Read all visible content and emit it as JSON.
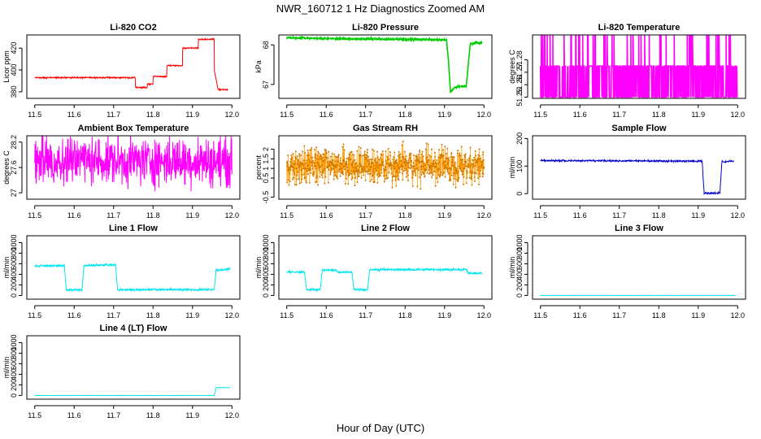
{
  "figure": {
    "title": "NWR_160712  1 Hz Diagnostics Zoomed AM",
    "xlabel": "Hour of Day (UTC)"
  },
  "chart_data": [
    {
      "type": "line",
      "title": "Li-820 CO2",
      "ylabel": "Licor ppm",
      "xlim": [
        11.48,
        12.02
      ],
      "ylim": [
        374,
        432
      ],
      "xticks": [
        11.5,
        11.6,
        11.7,
        11.8,
        11.9,
        12.0
      ],
      "yticks": [
        380,
        400,
        420
      ],
      "color": "#ff0000",
      "noise": 0.3,
      "series": [
        {
          "x": [
            11.5,
            11.755,
            11.755,
            11.785,
            11.785,
            11.8,
            11.8,
            11.835,
            11.835,
            11.875,
            11.875,
            11.915,
            11.915,
            11.955,
            11.955,
            11.965,
            11.965,
            11.99
          ],
          "y": [
            393,
            393,
            384,
            384,
            387,
            387,
            394,
            394,
            404,
            404,
            420,
            420,
            428,
            428,
            400,
            382,
            382,
            382
          ]
        }
      ]
    },
    {
      "type": "line",
      "title": "Li-820 Pressure",
      "ylabel": "kPa",
      "xlim": [
        11.48,
        12.02
      ],
      "ylim": [
        66.65,
        68.25
      ],
      "xticks": [
        11.5,
        11.6,
        11.7,
        11.8,
        11.9,
        12.0
      ],
      "yticks": [
        67.0,
        68.0
      ],
      "color": "#00cc00",
      "noise": 0.01,
      "series": [
        {
          "x": [
            11.5,
            11.6,
            11.7,
            11.8,
            11.905,
            11.91,
            11.915,
            11.925,
            11.935,
            11.955,
            11.965,
            11.98,
            11.995
          ],
          "y": [
            68.18,
            68.16,
            68.15,
            68.14,
            68.13,
            67.6,
            66.8,
            66.92,
            66.95,
            66.95,
            68.02,
            68.05,
            68.05
          ]
        }
      ]
    },
    {
      "type": "line",
      "title": "Li-820 Temperature",
      "ylabel": "degrees C",
      "xlim": [
        11.48,
        12.02
      ],
      "ylim": [
        51.249,
        51.3
      ],
      "xticks": [
        11.5,
        11.6,
        11.7,
        11.8,
        11.9,
        12.0
      ],
      "yticks": [
        51.25,
        51.26,
        51.27,
        51.28
      ],
      "color": "#ff00ff",
      "levels": [
        51.25,
        51.275
      ],
      "rare_level": 51.3,
      "series": [
        {
          "x": [
            11.5,
            12.0
          ],
          "y": [
            51.25,
            51.275
          ]
        }
      ]
    },
    {
      "type": "line",
      "title": "Ambient Box Temperature",
      "ylabel": "degrees C",
      "xlim": [
        11.48,
        12.02
      ],
      "ylim": [
        26.85,
        28.35
      ],
      "xticks": [
        11.5,
        11.6,
        11.7,
        11.8,
        11.9,
        12.0
      ],
      "yticks": [
        27.0,
        27.6,
        28.2
      ],
      "color": "#ff00ff",
      "noise": 0.28,
      "series": [
        {
          "x": [
            11.5,
            12.0
          ],
          "y": [
            27.78,
            27.74
          ]
        }
      ]
    },
    {
      "type": "scatter",
      "title": "Gas Stream RH",
      "ylabel": "percent",
      "xlim": [
        11.48,
        12.02
      ],
      "ylim": [
        -0.6,
        2.7
      ],
      "xticks": [
        11.5,
        11.6,
        11.7,
        11.8,
        11.9,
        12.0
      ],
      "yticks": [
        -0.5,
        0.5,
        1.0,
        1.5,
        2.0
      ],
      "color": "#ff9900",
      "noise": 0.45,
      "series": [
        {
          "x": [
            11.5,
            12.0
          ],
          "y": [
            1.15,
            1.15
          ]
        }
      ]
    },
    {
      "type": "line",
      "title": "Sample Flow",
      "ylabel": "ml/min",
      "xlim": [
        11.48,
        12.02
      ],
      "ylim": [
        -20,
        210
      ],
      "xticks": [
        11.5,
        11.6,
        11.7,
        11.8,
        11.9,
        12.0
      ],
      "yticks": [
        0,
        100,
        200
      ],
      "color": "#0000cc",
      "noise": 1.5,
      "series": [
        {
          "x": [
            11.5,
            11.9,
            11.91,
            11.915,
            11.955,
            11.96,
            11.99
          ],
          "y": [
            120,
            118,
            118,
            2,
            2,
            115,
            118
          ]
        }
      ]
    },
    {
      "type": "line",
      "title": "Line 1 Flow",
      "ylabel": "ml/min",
      "xlim": [
        11.48,
        12.02
      ],
      "ylim": [
        -70,
        1130
      ],
      "xticks": [
        11.5,
        11.6,
        11.7,
        11.8,
        11.9,
        12.0
      ],
      "yticks": [
        0,
        200,
        400,
        600,
        800,
        1000
      ],
      "color": "#00e5ee",
      "noise": 10,
      "series": [
        {
          "x": [
            11.5,
            11.575,
            11.58,
            11.62,
            11.625,
            11.705,
            11.71,
            11.955,
            11.96,
            11.995
          ],
          "y": [
            560,
            565,
            110,
            110,
            570,
            580,
            110,
            110,
            480,
            500
          ]
        }
      ]
    },
    {
      "type": "line",
      "title": "Line 2 Flow",
      "ylabel": "ml/min",
      "xlim": [
        11.48,
        12.02
      ],
      "ylim": [
        -70,
        1130
      ],
      "xticks": [
        11.5,
        11.6,
        11.7,
        11.8,
        11.9,
        12.0
      ],
      "yticks": [
        0,
        200,
        400,
        600,
        800,
        1000
      ],
      "color": "#00e5ee",
      "noise": 10,
      "series": [
        {
          "x": [
            11.5,
            11.545,
            11.55,
            11.585,
            11.59,
            11.625,
            11.63,
            11.665,
            11.67,
            11.705,
            11.71,
            11.955,
            11.96,
            11.995
          ],
          "y": [
            445,
            445,
            110,
            110,
            480,
            480,
            440,
            440,
            110,
            110,
            490,
            490,
            420,
            420
          ]
        }
      ]
    },
    {
      "type": "line",
      "title": "Line 3 Flow",
      "ylabel": "ml/min",
      "xlim": [
        11.48,
        12.02
      ],
      "ylim": [
        -70,
        1130
      ],
      "xticks": [
        11.5,
        11.6,
        11.7,
        11.8,
        11.9,
        12.0
      ],
      "yticks": [
        0,
        200,
        400,
        600,
        800,
        1000
      ],
      "color": "#00e5ee",
      "noise": 1,
      "series": [
        {
          "x": [
            11.5,
            11.995
          ],
          "y": [
            0,
            0
          ]
        }
      ]
    },
    {
      "type": "line",
      "title": "Line 4 (LT) Flow",
      "ylabel": "ml/min",
      "xlim": [
        11.48,
        12.02
      ],
      "ylim": [
        -70,
        1130
      ],
      "xticks": [
        11.5,
        11.6,
        11.7,
        11.8,
        11.9,
        12.0
      ],
      "yticks": [
        0,
        200,
        400,
        600,
        800,
        1000
      ],
      "color": "#00e5ee",
      "noise": 1,
      "series": [
        {
          "x": [
            11.5,
            11.955,
            11.96,
            11.995
          ],
          "y": [
            0,
            0,
            150,
            150
          ]
        }
      ]
    }
  ]
}
